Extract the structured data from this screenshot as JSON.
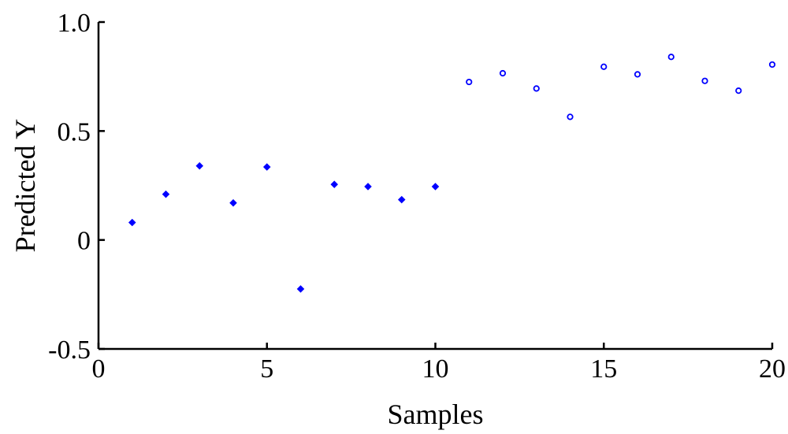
{
  "chart_data": {
    "type": "scatter",
    "title": "",
    "xlabel": "Samples",
    "ylabel": "Predicted Y",
    "xlim": [
      0,
      20
    ],
    "ylim": [
      -0.5,
      1.0
    ],
    "x_ticks": [
      0,
      5,
      10,
      15,
      20
    ],
    "x_tick_labels": [
      "0",
      "5",
      "10",
      "15",
      "20"
    ],
    "y_ticks": [
      -0.5,
      0,
      0.5,
      1.0
    ],
    "y_tick_labels": [
      "-0.5",
      "0",
      "0.5",
      "1.0"
    ],
    "grid": false,
    "legend": "none",
    "series": [
      {
        "marker": "filled-diamond",
        "color": "#0000ff",
        "x": [
          1,
          2,
          3,
          4,
          5,
          6,
          7,
          8,
          9,
          10
        ],
        "y": [
          0.08,
          0.21,
          0.34,
          0.17,
          0.335,
          -0.225,
          0.255,
          0.245,
          0.185,
          0.245
        ]
      },
      {
        "marker": "open-circle",
        "color": "#0000ff",
        "x": [
          11,
          12,
          13,
          14,
          15,
          16,
          17,
          18,
          19,
          20
        ],
        "y": [
          0.725,
          0.765,
          0.695,
          0.565,
          0.795,
          0.76,
          0.84,
          0.73,
          0.685,
          0.805
        ]
      }
    ]
  }
}
